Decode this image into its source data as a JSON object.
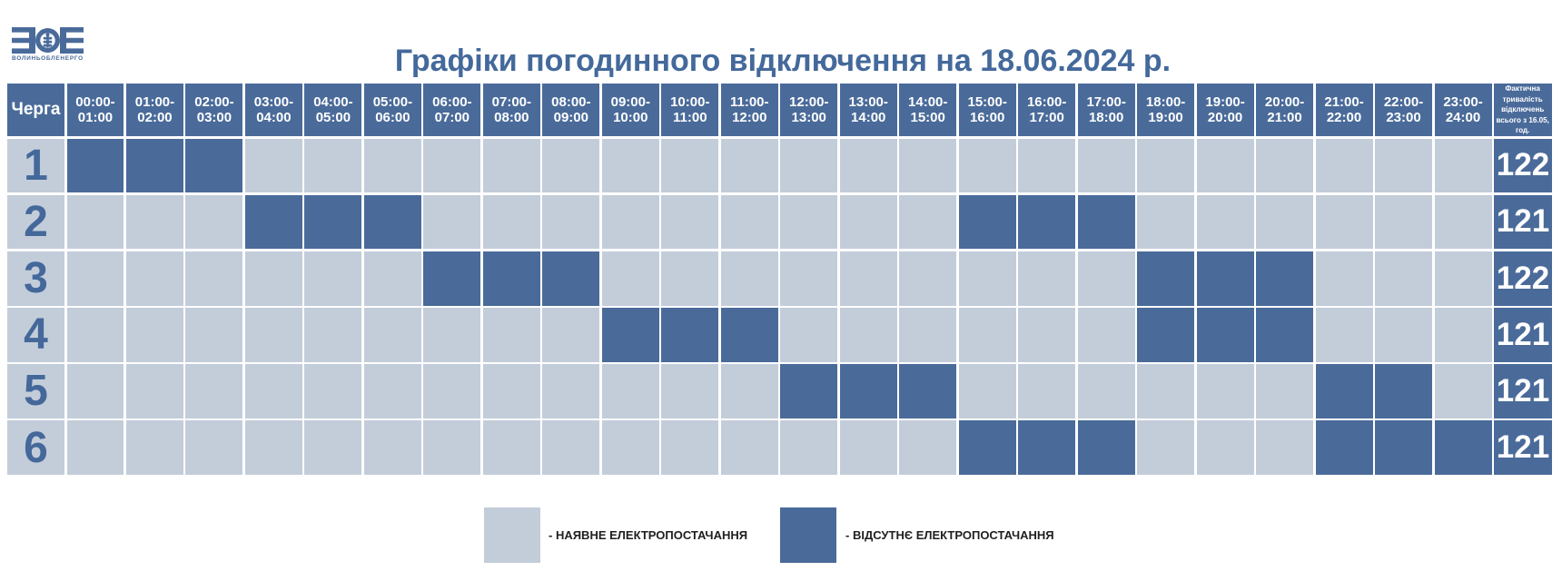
{
  "logo": {
    "mark": "ЗОЕ-monogram",
    "subtext": "ВОЛИНЬОБЛЕНЕРГО"
  },
  "title": "Графіки погодинного відключення на 18.06.2024 р.",
  "colors": {
    "outage": "#4a6b9a",
    "power_on": "#c3cdda",
    "title_text": "#44699b",
    "queue_number_text": "#44689a",
    "header_text": "#ffffff",
    "legend_text": "#1f1f1f",
    "background": "#ffffff"
  },
  "table": {
    "queue_header": "Черга",
    "time_slots": [
      "00:00-\n01:00",
      "01:00-\n02:00",
      "02:00-\n03:00",
      "03:00-\n04:00",
      "04:00-\n05:00",
      "05:00-\n06:00",
      "06:00-\n07:00",
      "07:00-\n08:00",
      "08:00-\n09:00",
      "09:00-\n10:00",
      "10:00-\n11:00",
      "11:00-\n12:00",
      "12:00-\n13:00",
      "13:00-\n14:00",
      "14:00-\n15:00",
      "15:00-\n16:00",
      "16:00-\n17:00",
      "17:00-\n18:00",
      "18:00-\n19:00",
      "19:00-\n20:00",
      "20:00-\n21:00",
      "21:00-\n22:00",
      "22:00-\n23:00",
      "23:00-\n24:00"
    ],
    "total_header": "Фактична тривалість відключень всього з 16.05, год.",
    "total_header_lines": "Фактична\nтривалість\nвідключень\nвсього з 16.05,\nгод.",
    "rows": [
      {
        "queue": "1",
        "cells": [
          1,
          1,
          1,
          0,
          0,
          0,
          0,
          0,
          0,
          0,
          0,
          0,
          0,
          0,
          0,
          0,
          0,
          0,
          0,
          0,
          0,
          0,
          0,
          0
        ],
        "total": "122"
      },
      {
        "queue": "2",
        "cells": [
          0,
          0,
          0,
          1,
          1,
          1,
          0,
          0,
          0,
          0,
          0,
          0,
          0,
          0,
          0,
          1,
          1,
          1,
          0,
          0,
          0,
          0,
          0,
          0
        ],
        "total": "121"
      },
      {
        "queue": "3",
        "cells": [
          0,
          0,
          0,
          0,
          0,
          0,
          1,
          1,
          1,
          0,
          0,
          0,
          0,
          0,
          0,
          0,
          0,
          0,
          1,
          1,
          1,
          0,
          0,
          0
        ],
        "total": "122"
      },
      {
        "queue": "4",
        "cells": [
          0,
          0,
          0,
          0,
          0,
          0,
          0,
          0,
          0,
          1,
          1,
          1,
          0,
          0,
          0,
          0,
          0,
          0,
          1,
          1,
          1,
          0,
          0,
          0
        ],
        "total": "121"
      },
      {
        "queue": "5",
        "cells": [
          0,
          0,
          0,
          0,
          0,
          0,
          0,
          0,
          0,
          0,
          0,
          0,
          1,
          1,
          1,
          0,
          0,
          0,
          0,
          0,
          0,
          1,
          1,
          0
        ],
        "total": "121"
      },
      {
        "queue": "6",
        "cells": [
          0,
          0,
          0,
          0,
          0,
          0,
          0,
          0,
          0,
          0,
          0,
          0,
          0,
          0,
          0,
          1,
          1,
          1,
          0,
          0,
          0,
          1,
          1,
          1
        ],
        "total": "121"
      }
    ]
  },
  "legend": {
    "power_on_label": "- НАЯВНЕ ЕЛЕКТРОПОСТАЧАННЯ",
    "outage_label": "- ВІДСУТНЄ ЕЛЕКТРОПОСТАЧАННЯ"
  },
  "chart_data": {
    "type": "heatmap",
    "title": "Графіки погодинного відключення на 18.06.2024 р.",
    "xlabel": "",
    "ylabel": "Черга",
    "x": [
      "00:00-01:00",
      "01:00-02:00",
      "02:00-03:00",
      "03:00-04:00",
      "04:00-05:00",
      "05:00-06:00",
      "06:00-07:00",
      "07:00-08:00",
      "08:00-09:00",
      "09:00-10:00",
      "10:00-11:00",
      "11:00-12:00",
      "12:00-13:00",
      "13:00-14:00",
      "14:00-15:00",
      "15:00-16:00",
      "16:00-17:00",
      "17:00-18:00",
      "18:00-19:00",
      "19:00-20:00",
      "20:00-21:00",
      "21:00-22:00",
      "22:00-23:00",
      "23:00-24:00"
    ],
    "value_meaning": {
      "0": "наявне електропостачання",
      "1": "відсутнє електропостачання"
    },
    "series": [
      {
        "name": "1",
        "values": [
          1,
          1,
          1,
          0,
          0,
          0,
          0,
          0,
          0,
          0,
          0,
          0,
          0,
          0,
          0,
          0,
          0,
          0,
          0,
          0,
          0,
          0,
          0,
          0
        ],
        "total_outage_hours_since_16_05": 122
      },
      {
        "name": "2",
        "values": [
          0,
          0,
          0,
          1,
          1,
          1,
          0,
          0,
          0,
          0,
          0,
          0,
          0,
          0,
          0,
          1,
          1,
          1,
          0,
          0,
          0,
          0,
          0,
          0
        ],
        "total_outage_hours_since_16_05": 121
      },
      {
        "name": "3",
        "values": [
          0,
          0,
          0,
          0,
          0,
          0,
          1,
          1,
          1,
          0,
          0,
          0,
          0,
          0,
          0,
          0,
          0,
          0,
          1,
          1,
          1,
          0,
          0,
          0
        ],
        "total_outage_hours_since_16_05": 122
      },
      {
        "name": "4",
        "values": [
          0,
          0,
          0,
          0,
          0,
          0,
          0,
          0,
          0,
          1,
          1,
          1,
          0,
          0,
          0,
          0,
          0,
          0,
          1,
          1,
          1,
          0,
          0,
          0
        ],
        "total_outage_hours_since_16_05": 121
      },
      {
        "name": "5",
        "values": [
          0,
          0,
          0,
          0,
          0,
          0,
          0,
          0,
          0,
          0,
          0,
          0,
          1,
          1,
          1,
          0,
          0,
          0,
          0,
          0,
          0,
          1,
          1,
          0
        ],
        "total_outage_hours_since_16_05": 121
      },
      {
        "name": "6",
        "values": [
          0,
          0,
          0,
          0,
          0,
          0,
          0,
          0,
          0,
          0,
          0,
          0,
          0,
          0,
          0,
          1,
          1,
          1,
          0,
          0,
          0,
          1,
          1,
          1
        ],
        "total_outage_hours_since_16_05": 121
      }
    ],
    "totals_column_header": "Фактична тривалість відключень всього з 16.05, год.",
    "legend": [
      "- НАЯВНЕ ЕЛЕКТРОПОСТАЧАННЯ",
      "- ВІДСУТНЄ ЕЛЕКТРОПОСТАЧАННЯ"
    ],
    "legend_position": "bottom"
  }
}
